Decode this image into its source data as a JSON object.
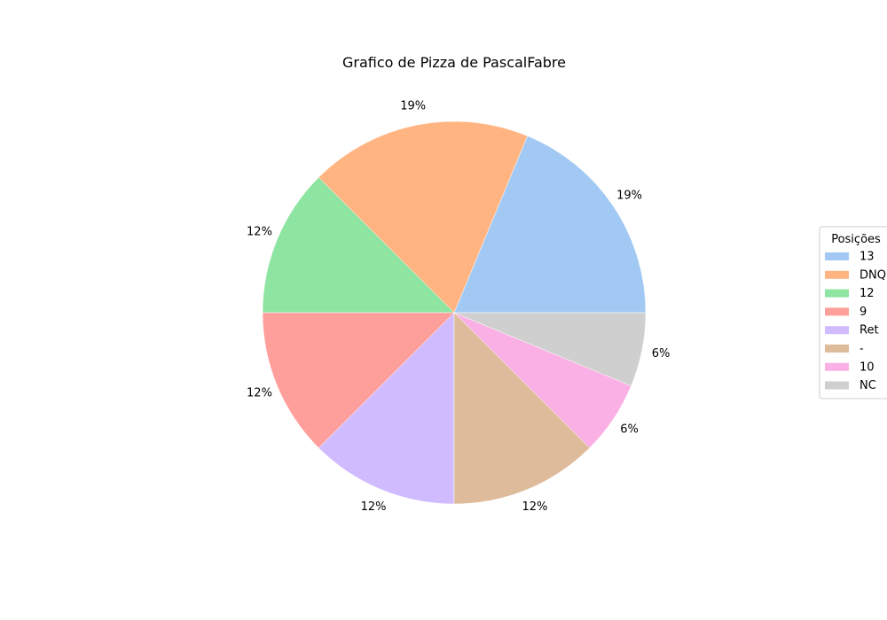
{
  "chart_data": {
    "type": "pie",
    "title": "Grafico de Pizza de PascalFabre",
    "legend": {
      "title": "Posições",
      "placement": "right"
    },
    "slices": [
      {
        "label": "13",
        "value": 3,
        "pct_label": "19%",
        "color": "#a1c9f4"
      },
      {
        "label": "DNQ",
        "value": 3,
        "pct_label": "19%",
        "color": "#ffb482"
      },
      {
        "label": "12",
        "value": 2,
        "pct_label": "12%",
        "color": "#8de5a1"
      },
      {
        "label": "9",
        "value": 2,
        "pct_label": "12%",
        "color": "#ff9f9b"
      },
      {
        "label": "Ret",
        "value": 2,
        "pct_label": "12%",
        "color": "#d0bbff"
      },
      {
        "label": "-",
        "value": 2,
        "pct_label": "12%",
        "color": "#debb9b"
      },
      {
        "label": "10",
        "value": 1,
        "pct_label": "6%",
        "color": "#fab0e4"
      },
      {
        "label": "NC",
        "value": 1,
        "pct_label": "6%",
        "color": "#cfcfcf"
      }
    ]
  }
}
